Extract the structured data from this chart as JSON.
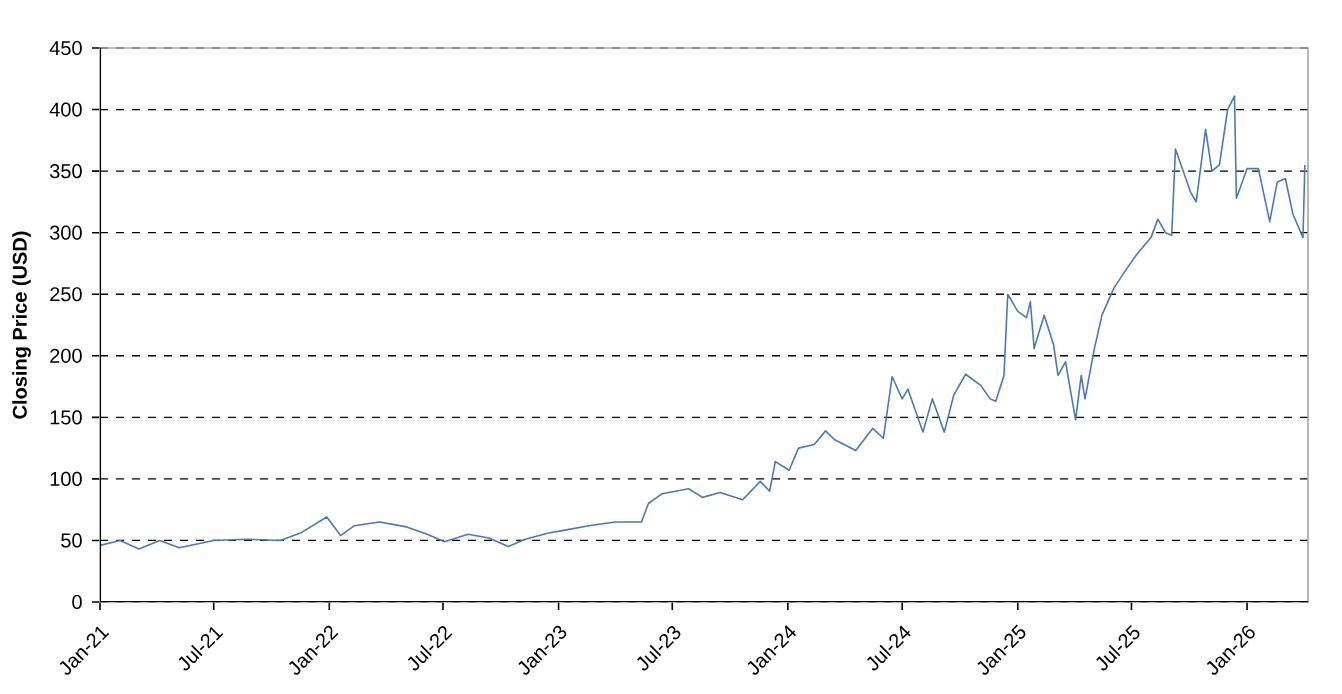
{
  "chart_data": {
    "type": "line",
    "ylabel": "Closing Price (USD)",
    "color": "#4a7ab5",
    "line_style": "solid",
    "grid": "y",
    "ylim": [
      0,
      450
    ],
    "yticks": [
      0,
      50,
      100,
      150,
      200,
      250,
      300,
      350,
      400,
      450
    ],
    "xlim": [
      "2021-01-01",
      "2026-04-08"
    ],
    "xticks": [
      {
        "value": "2021-01-01",
        "label": "Jan-21"
      },
      {
        "value": "2021-07-01",
        "label": "Jul-21"
      },
      {
        "value": "2022-01-01",
        "label": "Jan-22"
      },
      {
        "value": "2022-07-01",
        "label": "Jul-22"
      },
      {
        "value": "2023-01-01",
        "label": "Jan-23"
      },
      {
        "value": "2023-07-01",
        "label": "Jul-23"
      },
      {
        "value": "2024-01-01",
        "label": "Jan-24"
      },
      {
        "value": "2024-07-01",
        "label": "Jul-24"
      },
      {
        "value": "2025-01-01",
        "label": "Jan-25"
      },
      {
        "value": "2025-07-01",
        "label": "Jul-25"
      },
      {
        "value": "2026-01-01",
        "label": "Jan-26"
      }
    ],
    "x": [
      "2021-01-01",
      "2021-02-02",
      "2021-03-04",
      "2021-04-06",
      "2021-05-07",
      "2021-07-01",
      "2021-08-22",
      "2021-10-15",
      "2021-11-16",
      "2021-12-28",
      "2022-01-19",
      "2022-02-10",
      "2022-03-22",
      "2022-05-04",
      "2022-06-06",
      "2022-07-03",
      "2022-08-10",
      "2022-09-12",
      "2022-10-13",
      "2022-11-09",
      "2022-12-16",
      "2023-01-07",
      "2023-02-18",
      "2023-04-01",
      "2023-05-13",
      "2023-05-24",
      "2023-06-15",
      "2023-07-27",
      "2023-08-18",
      "2023-09-15",
      "2023-10-21",
      "2023-11-18",
      "2023-12-03",
      "2023-12-12",
      "2024-01-03",
      "2024-01-18",
      "2024-02-12",
      "2024-03-01",
      "2024-03-15",
      "2024-04-18",
      "2024-05-15",
      "2024-06-01",
      "2024-06-15",
      "2024-07-01",
      "2024-07-10",
      "2024-08-03",
      "2024-08-18",
      "2024-09-06",
      "2024-09-21",
      "2024-10-10",
      "2024-11-03",
      "2024-11-18",
      "2024-11-27",
      "2024-12-10",
      "2024-12-16",
      "2025-01-01",
      "2025-01-15",
      "2025-01-21",
      "2025-01-27",
      "2025-02-12",
      "2025-02-27",
      "2025-03-06",
      "2025-03-18",
      "2025-04-03",
      "2025-04-12",
      "2025-04-18",
      "2025-05-03",
      "2025-05-15",
      "2025-06-03",
      "2025-06-21",
      "2025-07-09",
      "2025-08-01",
      "2025-08-12",
      "2025-08-24",
      "2025-09-03",
      "2025-09-09",
      "2025-10-03",
      "2025-10-12",
      "2025-10-27",
      "2025-11-06",
      "2025-11-18",
      "2025-12-01",
      "2025-12-12",
      "2025-12-15",
      "2026-01-01",
      "2026-01-19",
      "2026-02-06",
      "2026-02-18",
      "2026-03-03",
      "2026-03-15",
      "2026-03-31",
      "2026-04-03"
    ],
    "values": [
      46,
      50,
      43,
      50,
      44,
      50,
      51,
      50,
      56,
      69,
      54,
      62,
      65,
      61,
      55,
      49,
      55,
      52,
      45,
      51,
      56,
      58,
      62,
      65,
      65,
      80,
      88,
      92,
      85,
      89,
      83,
      98,
      90,
      114,
      107,
      125,
      128,
      139,
      132,
      123,
      141,
      133,
      183,
      165,
      173,
      138,
      165,
      138,
      168,
      185,
      176,
      165,
      163,
      184,
      250,
      236,
      231,
      244,
      206,
      233,
      209,
      184,
      195,
      148,
      184,
      165,
      206,
      233,
      255,
      269,
      282,
      296,
      311,
      300,
      298,
      368,
      333,
      325,
      384,
      350,
      355,
      400,
      411,
      328,
      352,
      352,
      309,
      341,
      344,
      315,
      296,
      355
    ]
  }
}
